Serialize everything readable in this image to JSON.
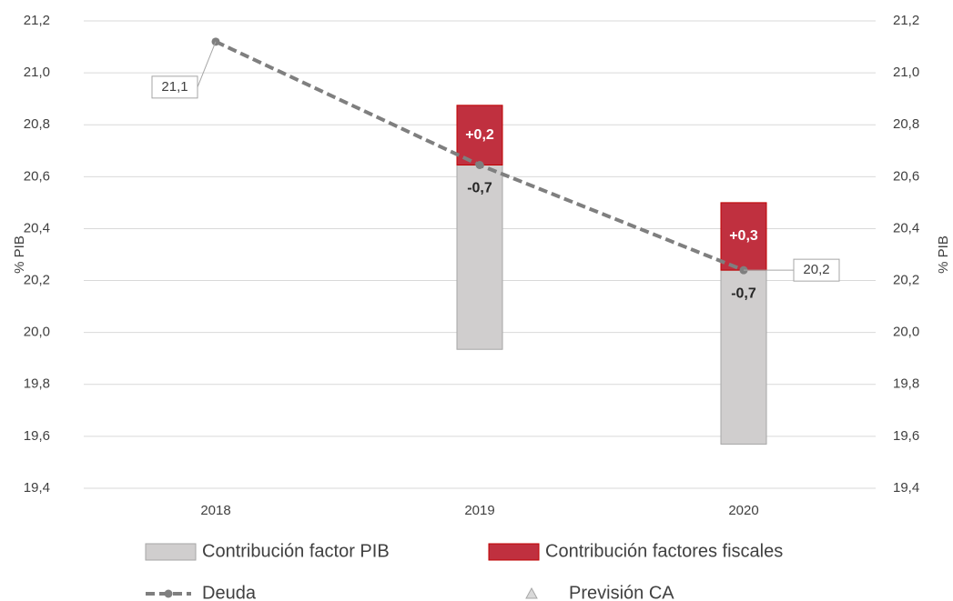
{
  "chart_data": {
    "type": "floating-bar-line",
    "y_label": "% PIB",
    "y2_label": "% PIB",
    "categories": [
      "2018",
      "2019",
      "2020"
    ],
    "ylim": [
      19.4,
      21.2
    ],
    "yticks": [
      {
        "value": 19.4,
        "label": "19,4"
      },
      {
        "value": 19.6,
        "label": "19,6"
      },
      {
        "value": 19.8,
        "label": "19,8"
      },
      {
        "value": 20.0,
        "label": "20,0"
      },
      {
        "value": 20.2,
        "label": "20,2"
      },
      {
        "value": 20.4,
        "label": "20,4"
      },
      {
        "value": 20.6,
        "label": "20,6"
      },
      {
        "value": 20.8,
        "label": "20,8"
      },
      {
        "value": 21.0,
        "label": "21,0"
      },
      {
        "value": 21.2,
        "label": "21,2"
      }
    ],
    "y2lim": [
      19.4,
      21.2
    ],
    "y2ticks": [
      {
        "value": 19.4,
        "label": "19,4"
      },
      {
        "value": 19.6,
        "label": "19,6"
      },
      {
        "value": 19.8,
        "label": "19,8"
      },
      {
        "value": 20.0,
        "label": "20,0"
      },
      {
        "value": 20.2,
        "label": "20,2"
      },
      {
        "value": 20.4,
        "label": "20,4"
      },
      {
        "value": 20.6,
        "label": "20,6"
      },
      {
        "value": 20.8,
        "label": "20,8"
      },
      {
        "value": 21.0,
        "label": "21,0"
      },
      {
        "value": 21.2,
        "label": "21,2"
      }
    ],
    "grid": true,
    "series": [
      {
        "name": "Contribución factor PIB",
        "kind": "bar",
        "color": "#d0cece",
        "values": [
          null,
          -0.71,
          -0.67
        ],
        "value_labels": [
          null,
          "-0,7",
          "-0,7"
        ]
      },
      {
        "name": "Contribución factores fiscales",
        "kind": "bar",
        "color": "#c0303f",
        "values": [
          null,
          0.23,
          0.26
        ],
        "value_labels": [
          null,
          "+0,2",
          "+0,3"
        ]
      },
      {
        "name": "Deuda",
        "kind": "line",
        "color": "#7f7f7f",
        "values": [
          21.12,
          20.645,
          20.24
        ],
        "value_labels": [
          "21,1",
          null,
          "20,2"
        ]
      },
      {
        "name": "Previsión CA",
        "kind": "marker",
        "color": "#a6a6a6",
        "values": [
          null,
          null,
          null
        ]
      }
    ]
  }
}
